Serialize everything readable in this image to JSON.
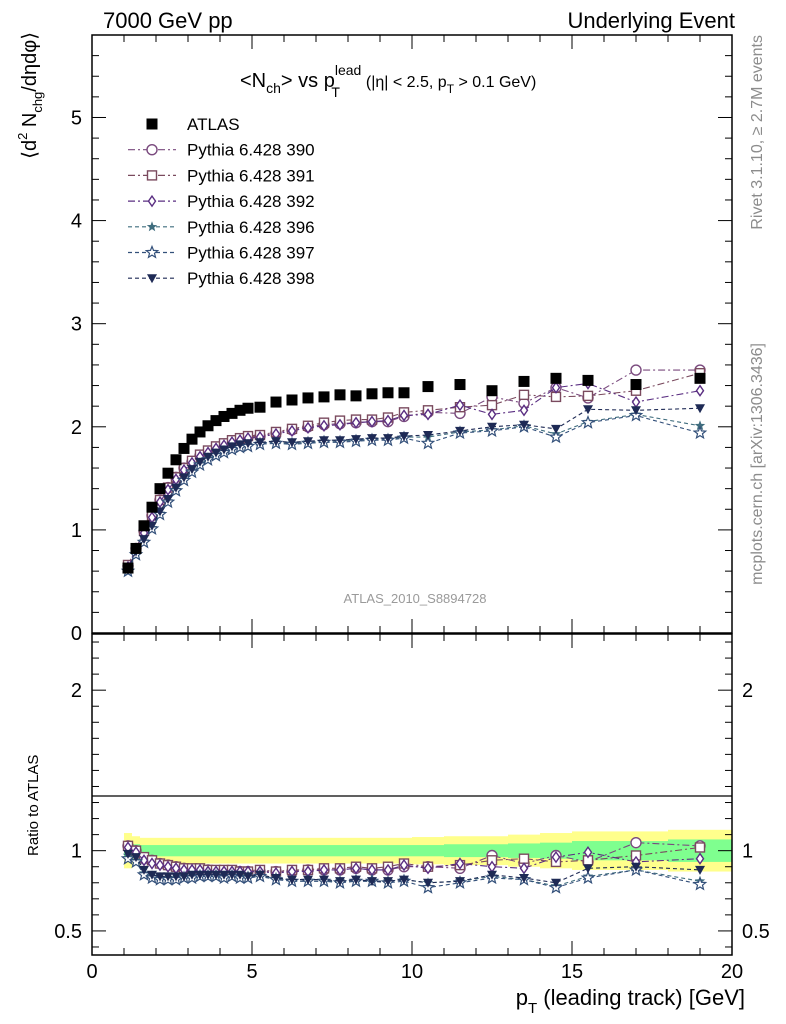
{
  "header": {
    "left": "7000 GeV pp",
    "right": "Underlying Event"
  },
  "title": {
    "main": "<N",
    "main_sub": "ch",
    "main_vs": "> vs p",
    "main_sup": "lead",
    "main_sub2": "T",
    "cuts": "(|η| < 2.5, p",
    "cuts_sub": "T",
    "cuts_tail": " > 0.1 GeV)"
  },
  "watermark": "ATLAS_2010_S8894728",
  "side_text": {
    "rivet": "Rivet 3.1.10, ≥ 2.7M events",
    "mcplots": "mcplots.cern.ch [arXiv:1306.3436]"
  },
  "axes": {
    "top_ylabel": "⟨d² N_chg/dηdφ⟩",
    "top_ylabel_parts": [
      "⟨d",
      "2",
      " N",
      "chg",
      "/dηdφ⟩"
    ],
    "bottom_ylabel": "Ratio to ATLAS",
    "xlabel_main": "p",
    "xlabel_sub": "T",
    "xlabel_tail": " (leading track) [GeV]",
    "x_ticks": [
      "0",
      "5",
      "10",
      "15",
      "20"
    ],
    "top_y_ticks": [
      "1",
      "2",
      "3",
      "4",
      "5"
    ],
    "top_y_zero": "0",
    "ratio_y_ticks": [
      "0.5",
      "1",
      "2"
    ]
  },
  "chart_data": {
    "type": "scatter",
    "x_range": [
      0,
      20
    ],
    "top_ylim": [
      0,
      5.8
    ],
    "ratio_ylim": [
      0.35,
      2.35
    ],
    "x": [
      1.125,
      1.375,
      1.625,
      1.875,
      2.125,
      2.375,
      2.625,
      2.875,
      3.125,
      3.375,
      3.625,
      3.875,
      4.125,
      4.375,
      4.625,
      4.875,
      5.25,
      5.75,
      6.25,
      6.75,
      7.25,
      7.75,
      8.25,
      8.75,
      9.25,
      9.75,
      10.5,
      11.5,
      12.5,
      13.5,
      14.5,
      15.5,
      17.0,
      19.0
    ],
    "series": [
      {
        "name": "ATLAS",
        "marker": "square-filled",
        "color": "#000000",
        "line": "none",
        "values": [
          0.63,
          0.82,
          1.04,
          1.22,
          1.4,
          1.55,
          1.68,
          1.79,
          1.88,
          1.95,
          2.01,
          2.06,
          2.1,
          2.13,
          2.16,
          2.18,
          2.19,
          2.24,
          2.26,
          2.28,
          2.29,
          2.31,
          2.3,
          2.32,
          2.33,
          2.33,
          2.39,
          2.41,
          2.35,
          2.44,
          2.47,
          2.45,
          2.41,
          2.47
        ],
        "ratio": [
          1.0,
          1.0,
          1.0,
          1.0,
          1.0,
          1.0,
          1.0,
          1.0,
          1.0,
          1.0,
          1.0,
          1.0,
          1.0,
          1.0,
          1.0,
          1.0,
          1.0,
          1.0,
          1.0,
          1.0,
          1.0,
          1.0,
          1.0,
          1.0,
          1.0,
          1.0,
          1.0,
          1.0,
          1.0,
          1.0,
          1.0,
          1.0,
          1.0,
          1.0
        ]
      },
      {
        "name": "Pythia 6.428 390",
        "marker": "circle-open",
        "color": "#7a4a7e",
        "line": "dashdot",
        "values": [
          0.65,
          0.82,
          0.99,
          1.14,
          1.29,
          1.41,
          1.51,
          1.6,
          1.66,
          1.72,
          1.76,
          1.8,
          1.83,
          1.86,
          1.88,
          1.9,
          1.91,
          1.94,
          1.97,
          2.0,
          2.02,
          2.03,
          2.04,
          2.05,
          2.05,
          2.1,
          2.14,
          2.13,
          2.29,
          2.23,
          2.38,
          2.28,
          2.55,
          2.55
        ],
        "ratio": [
          1.03,
          1.0,
          0.95,
          0.94,
          0.92,
          0.91,
          0.9,
          0.89,
          0.88,
          0.88,
          0.88,
          0.87,
          0.87,
          0.87,
          0.87,
          0.87,
          0.87,
          0.87,
          0.87,
          0.88,
          0.88,
          0.88,
          0.89,
          0.88,
          0.88,
          0.9,
          0.9,
          0.89,
          0.97,
          0.92,
          0.97,
          0.93,
          1.05,
          1.03
        ]
      },
      {
        "name": "Pythia 6.428 391",
        "marker": "square-open",
        "color": "#7a4a5e",
        "line": "dashdot",
        "values": [
          0.66,
          0.82,
          0.99,
          1.14,
          1.29,
          1.41,
          1.51,
          1.6,
          1.67,
          1.73,
          1.77,
          1.81,
          1.84,
          1.87,
          1.89,
          1.91,
          1.92,
          1.95,
          1.98,
          2.01,
          2.04,
          2.06,
          2.07,
          2.07,
          2.09,
          2.14,
          2.16,
          2.19,
          2.21,
          2.31,
          2.29,
          2.3,
          2.35,
          2.52
        ],
        "ratio": [
          1.03,
          1.0,
          0.96,
          0.94,
          0.92,
          0.91,
          0.9,
          0.89,
          0.89,
          0.89,
          0.88,
          0.88,
          0.88,
          0.88,
          0.87,
          0.87,
          0.88,
          0.87,
          0.88,
          0.88,
          0.89,
          0.89,
          0.9,
          0.89,
          0.9,
          0.92,
          0.9,
          0.91,
          0.94,
          0.95,
          0.93,
          0.94,
          0.97,
          1.02
        ]
      },
      {
        "name": "Pythia 6.428 392",
        "marker": "diamond-open",
        "color": "#5a2e82",
        "line": "dashdot",
        "values": [
          0.64,
          0.81,
          0.97,
          1.12,
          1.27,
          1.39,
          1.49,
          1.58,
          1.65,
          1.71,
          1.75,
          1.79,
          1.82,
          1.85,
          1.87,
          1.89,
          1.9,
          1.93,
          1.96,
          1.99,
          2.01,
          2.02,
          2.04,
          2.05,
          2.06,
          2.11,
          2.12,
          2.21,
          2.12,
          2.16,
          2.38,
          2.42,
          2.24,
          2.35
        ],
        "ratio": [
          1.02,
          0.99,
          0.94,
          0.92,
          0.91,
          0.9,
          0.89,
          0.88,
          0.88,
          0.88,
          0.87,
          0.87,
          0.87,
          0.87,
          0.87,
          0.87,
          0.87,
          0.86,
          0.87,
          0.87,
          0.88,
          0.88,
          0.89,
          0.88,
          0.88,
          0.91,
          0.89,
          0.92,
          0.9,
          0.89,
          0.96,
          0.99,
          0.93,
          0.95
        ]
      },
      {
        "name": "Pythia 6.428 396",
        "marker": "star-filled",
        "color": "#3f6d7e",
        "line": "dashed",
        "values": [
          0.61,
          0.77,
          0.89,
          1.02,
          1.16,
          1.28,
          1.39,
          1.49,
          1.57,
          1.64,
          1.69,
          1.73,
          1.76,
          1.79,
          1.81,
          1.82,
          1.84,
          1.85,
          1.84,
          1.85,
          1.86,
          1.86,
          1.87,
          1.88,
          1.88,
          1.9,
          1.9,
          1.95,
          1.97,
          2.01,
          1.93,
          2.05,
          2.12,
          2.01
        ],
        "ratio": [
          0.97,
          0.94,
          0.86,
          0.84,
          0.83,
          0.83,
          0.83,
          0.84,
          0.84,
          0.84,
          0.84,
          0.84,
          0.84,
          0.84,
          0.84,
          0.84,
          0.84,
          0.83,
          0.81,
          0.81,
          0.81,
          0.81,
          0.81,
          0.81,
          0.81,
          0.82,
          0.8,
          0.81,
          0.84,
          0.82,
          0.78,
          0.84,
          0.88,
          0.81
        ]
      },
      {
        "name": "Pythia 6.428 397",
        "marker": "star-open",
        "color": "#33507a",
        "line": "dashed",
        "values": [
          0.6,
          0.76,
          0.88,
          1.01,
          1.15,
          1.27,
          1.38,
          1.48,
          1.56,
          1.63,
          1.68,
          1.72,
          1.75,
          1.78,
          1.8,
          1.81,
          1.83,
          1.84,
          1.83,
          1.84,
          1.85,
          1.85,
          1.86,
          1.87,
          1.87,
          1.89,
          1.84,
          1.94,
          1.96,
          2.0,
          1.9,
          2.04,
          2.11,
          1.94
        ],
        "ratio": [
          0.95,
          0.93,
          0.85,
          0.83,
          0.82,
          0.82,
          0.82,
          0.83,
          0.83,
          0.84,
          0.84,
          0.84,
          0.83,
          0.84,
          0.83,
          0.83,
          0.84,
          0.82,
          0.81,
          0.81,
          0.81,
          0.8,
          0.81,
          0.81,
          0.8,
          0.81,
          0.77,
          0.8,
          0.83,
          0.82,
          0.77,
          0.83,
          0.88,
          0.79
        ]
      },
      {
        "name": "Pythia 6.428 398",
        "marker": "triangle-down-filled",
        "color": "#1e2a55",
        "line": "dashed",
        "values": [
          0.62,
          0.79,
          0.91,
          1.04,
          1.18,
          1.3,
          1.41,
          1.51,
          1.59,
          1.66,
          1.71,
          1.75,
          1.78,
          1.81,
          1.83,
          1.84,
          1.85,
          1.86,
          1.85,
          1.86,
          1.87,
          1.87,
          1.88,
          1.89,
          1.89,
          1.91,
          1.92,
          1.96,
          2.0,
          2.02,
          1.98,
          2.17,
          2.16,
          2.18
        ],
        "ratio": [
          0.98,
          0.96,
          0.88,
          0.85,
          0.84,
          0.84,
          0.84,
          0.84,
          0.85,
          0.85,
          0.85,
          0.85,
          0.85,
          0.85,
          0.85,
          0.84,
          0.85,
          0.83,
          0.82,
          0.82,
          0.82,
          0.81,
          0.82,
          0.81,
          0.81,
          0.82,
          0.8,
          0.81,
          0.85,
          0.83,
          0.8,
          0.89,
          0.9,
          0.88
        ]
      }
    ],
    "ratio_band": {
      "colors": {
        "inner": "#7fff8f",
        "outer": "#ffff8c"
      },
      "x_edges": [
        1.0,
        1.25,
        1.5,
        2.0,
        4.0,
        7.0,
        10.0,
        11.0,
        12.0,
        13.0,
        14.0,
        15.0,
        16.0,
        18.0,
        20.0
      ],
      "inner_half": [
        0.05,
        0.04,
        0.035,
        0.035,
        0.035,
        0.035,
        0.035,
        0.04,
        0.04,
        0.045,
        0.05,
        0.06,
        0.06,
        0.07
      ],
      "outer_half": [
        0.11,
        0.09,
        0.08,
        0.08,
        0.08,
        0.08,
        0.085,
        0.09,
        0.09,
        0.1,
        0.11,
        0.12,
        0.12,
        0.13
      ]
    }
  }
}
